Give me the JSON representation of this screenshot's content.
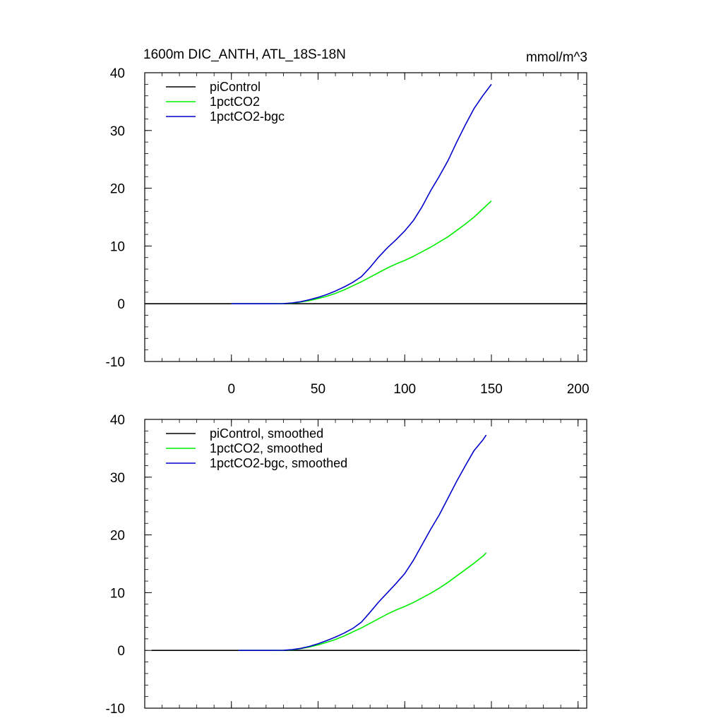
{
  "chart_data": [
    {
      "type": "line",
      "title": "1600m DIC_ANTH, ATL_18S-18N",
      "units": "mmol/m^3",
      "xlim": [
        -50,
        205
      ],
      "ylim": [
        -10,
        40
      ],
      "xticks": [
        0,
        50,
        100,
        150,
        200
      ],
      "yticks": [
        -10,
        0,
        10,
        20,
        30,
        40
      ],
      "xtick_labels": [
        "0",
        "50",
        "100",
        "150",
        "200"
      ],
      "ytick_labels": [
        "-10",
        "0",
        "10",
        "20",
        "30",
        "40"
      ],
      "show_xtick_labels": true,
      "legend_position": "top-left",
      "series": [
        {
          "name": "piControl",
          "color": "#000000",
          "points": [
            [
              -50,
              0
            ],
            [
              205,
              0
            ]
          ]
        },
        {
          "name": "1pctCO2",
          "color": "#00ee00",
          "points": [
            [
              0,
              0
            ],
            [
              20,
              0
            ],
            [
              30,
              0.02
            ],
            [
              35,
              0.1
            ],
            [
              40,
              0.3
            ],
            [
              45,
              0.55
            ],
            [
              50,
              0.9
            ],
            [
              55,
              1.3
            ],
            [
              60,
              1.8
            ],
            [
              65,
              2.4
            ],
            [
              70,
              3.1
            ],
            [
              75,
              3.8
            ],
            [
              80,
              4.6
            ],
            [
              85,
              5.4
            ],
            [
              90,
              6.2
            ],
            [
              95,
              6.9
            ],
            [
              100,
              7.5
            ],
            [
              105,
              8.2
            ],
            [
              110,
              9.0
            ],
            [
              115,
              9.8
            ],
            [
              120,
              10.7
            ],
            [
              125,
              11.6
            ],
            [
              130,
              12.7
            ],
            [
              135,
              13.8
            ],
            [
              140,
              15.0
            ],
            [
              145,
              16.4
            ],
            [
              150,
              17.8
            ]
          ]
        },
        {
          "name": "1pctCO2-bgc",
          "color": "#0000cc",
          "points": [
            [
              0,
              0
            ],
            [
              20,
              0
            ],
            [
              30,
              0.02
            ],
            [
              35,
              0.15
            ],
            [
              40,
              0.35
            ],
            [
              45,
              0.7
            ],
            [
              50,
              1.1
            ],
            [
              55,
              1.6
            ],
            [
              60,
              2.2
            ],
            [
              65,
              2.9
            ],
            [
              70,
              3.7
            ],
            [
              75,
              4.7
            ],
            [
              80,
              6.3
            ],
            [
              85,
              8.1
            ],
            [
              90,
              9.7
            ],
            [
              95,
              11.1
            ],
            [
              100,
              12.6
            ],
            [
              105,
              14.4
            ],
            [
              110,
              16.8
            ],
            [
              115,
              19.6
            ],
            [
              120,
              22.1
            ],
            [
              125,
              24.8
            ],
            [
              130,
              28.0
            ],
            [
              135,
              31.0
            ],
            [
              140,
              33.8
            ],
            [
              145,
              36.0
            ],
            [
              150,
              38.0
            ]
          ]
        }
      ]
    },
    {
      "type": "line",
      "title": "",
      "units": "",
      "xlim": [
        -50,
        205
      ],
      "ylim": [
        -10,
        40
      ],
      "xticks": [
        0,
        50,
        100,
        150,
        200
      ],
      "yticks": [
        -10,
        0,
        10,
        20,
        30,
        40
      ],
      "xtick_labels": [],
      "ytick_labels": [
        "-10",
        "0",
        "10",
        "20",
        "30",
        "40"
      ],
      "show_xtick_labels": false,
      "legend_position": "top-left",
      "series": [
        {
          "name": "piControl, smoothed",
          "color": "#000000",
          "points": [
            [
              -46,
              0
            ],
            [
              201,
              0
            ]
          ]
        },
        {
          "name": "1pctCO2, smoothed",
          "color": "#00ee00",
          "points": [
            [
              4,
              0
            ],
            [
              20,
              0
            ],
            [
              30,
              0.02
            ],
            [
              35,
              0.1
            ],
            [
              40,
              0.3
            ],
            [
              45,
              0.6
            ],
            [
              50,
              0.95
            ],
            [
              55,
              1.4
            ],
            [
              60,
              1.9
            ],
            [
              65,
              2.5
            ],
            [
              70,
              3.2
            ],
            [
              75,
              3.9
            ],
            [
              80,
              4.7
            ],
            [
              85,
              5.5
            ],
            [
              90,
              6.3
            ],
            [
              95,
              7.0
            ],
            [
              100,
              7.6
            ],
            [
              105,
              8.3
            ],
            [
              110,
              9.1
            ],
            [
              115,
              9.9
            ],
            [
              120,
              10.8
            ],
            [
              125,
              11.8
            ],
            [
              130,
              12.9
            ],
            [
              135,
              14.0
            ],
            [
              140,
              15.1
            ],
            [
              145,
              16.3
            ],
            [
              147,
              16.9
            ]
          ]
        },
        {
          "name": "1pctCO2-bgc, smoothed",
          "color": "#0000cc",
          "points": [
            [
              4,
              0
            ],
            [
              20,
              0
            ],
            [
              30,
              0.02
            ],
            [
              35,
              0.15
            ],
            [
              40,
              0.35
            ],
            [
              45,
              0.7
            ],
            [
              50,
              1.15
            ],
            [
              55,
              1.7
            ],
            [
              60,
              2.3
            ],
            [
              65,
              3.0
            ],
            [
              70,
              3.8
            ],
            [
              75,
              4.9
            ],
            [
              80,
              6.6
            ],
            [
              85,
              8.4
            ],
            [
              90,
              10.0
            ],
            [
              95,
              11.6
            ],
            [
              100,
              13.3
            ],
            [
              105,
              15.6
            ],
            [
              110,
              18.3
            ],
            [
              115,
              21.0
            ],
            [
              120,
              23.5
            ],
            [
              125,
              26.4
            ],
            [
              130,
              29.3
            ],
            [
              135,
              32.0
            ],
            [
              140,
              34.6
            ],
            [
              145,
              36.4
            ],
            [
              147,
              37.3
            ]
          ]
        }
      ]
    }
  ]
}
